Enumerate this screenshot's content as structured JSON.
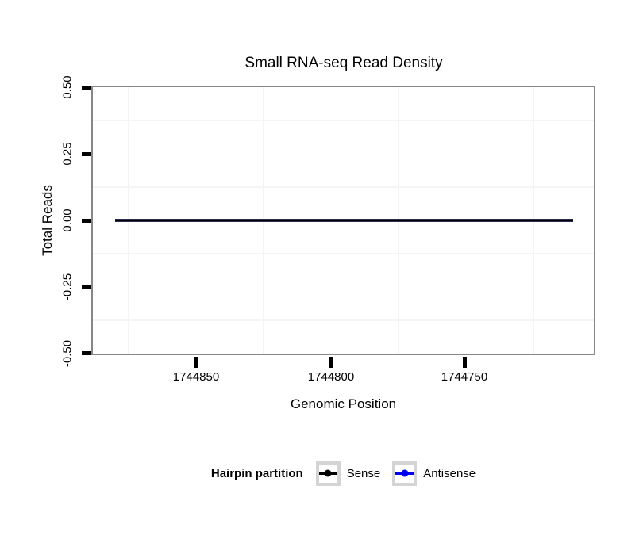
{
  "title": "Small RNA-seq Read Density",
  "y_axis": {
    "label": "Total Reads",
    "tick_labels": [
      "0.50",
      "0.25",
      "0.00",
      "-0.25",
      "-0.50"
    ]
  },
  "x_axis": {
    "label": "Genomic Position",
    "tick_labels": [
      "1744850",
      "1744800",
      "1744750"
    ]
  },
  "legend": {
    "title": "Hairpin partition",
    "items": [
      {
        "label": "Sense",
        "color": "#000000"
      },
      {
        "label": "Antisense",
        "color": "#0000EE"
      }
    ]
  },
  "colors": {
    "panel_border": "#878787",
    "minor_gridline": "#f4f4f4",
    "tick_mark": "#000000",
    "sense": "#000000",
    "antisense": "#0000EE",
    "overlap_line_fringe": "#474787",
    "legend_key_border": "#d4d4d4",
    "background": "#ffffff"
  },
  "chart_data": {
    "type": "line",
    "title": "Small RNA-seq Read Density",
    "xlabel": "Genomic Position",
    "ylabel": "Total Reads",
    "x_axis": {
      "reversed": true,
      "ticks": [
        1744850,
        1744800,
        1744750
      ],
      "minor_gridlines": [
        1744875,
        1744825,
        1744775,
        1744725
      ],
      "range_left_to_right": [
        1744888,
        1744702
      ]
    },
    "y_axis": {
      "ticks": [
        0.5,
        0.25,
        0.0,
        -0.25,
        -0.5
      ],
      "minor_gridlines": [
        0.375,
        0.125,
        -0.125,
        -0.375
      ],
      "ylim": [
        -0.5,
        0.5
      ]
    },
    "grid": "minor-gridlines-only",
    "legend_title": "Hairpin partition",
    "legend_position": "bottom-center",
    "series": [
      {
        "name": "Sense",
        "color": "#000000",
        "x": [
          1744880,
          1744709
        ],
        "y": [
          0,
          0
        ],
        "note": "flat line at y=0 across full data extent, drawn on top"
      },
      {
        "name": "Antisense",
        "color": "#0000EE",
        "x": [
          1744880,
          1744709
        ],
        "y": [
          0,
          0
        ],
        "note": "flat line at y=0, overlapped by Sense line giving navy fringe"
      }
    ]
  }
}
